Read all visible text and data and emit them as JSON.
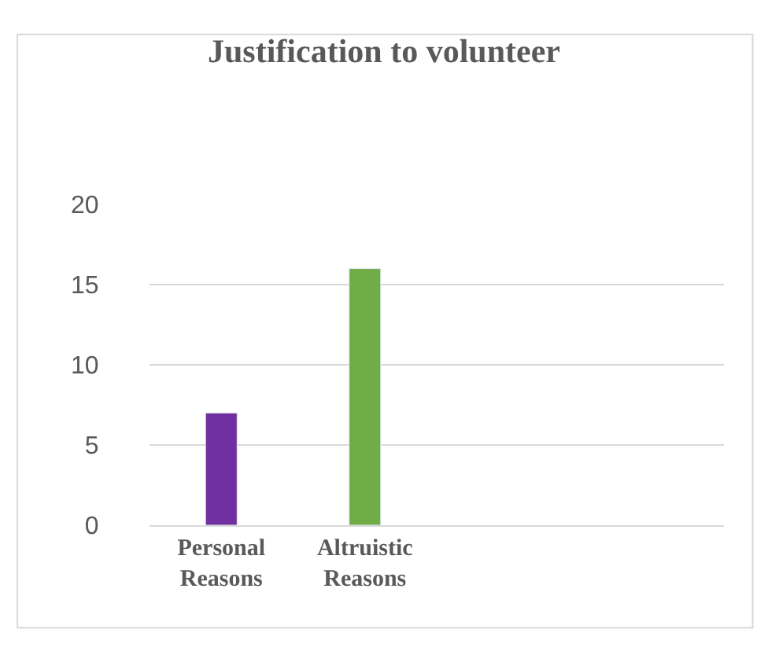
{
  "chart_data": {
    "type": "bar",
    "title": "Justification to volunteer",
    "categories": [
      "Personal Reasons",
      "Altruistic Reasons",
      null,
      null
    ],
    "values": [
      7,
      16,
      null,
      null
    ],
    "colors": [
      "#7030a0",
      "#70ad47",
      "#7030a0",
      "#70ad47"
    ],
    "ylim": [
      0,
      20
    ],
    "yticks": [
      0,
      5,
      10,
      15,
      20
    ],
    "grid": "y"
  }
}
